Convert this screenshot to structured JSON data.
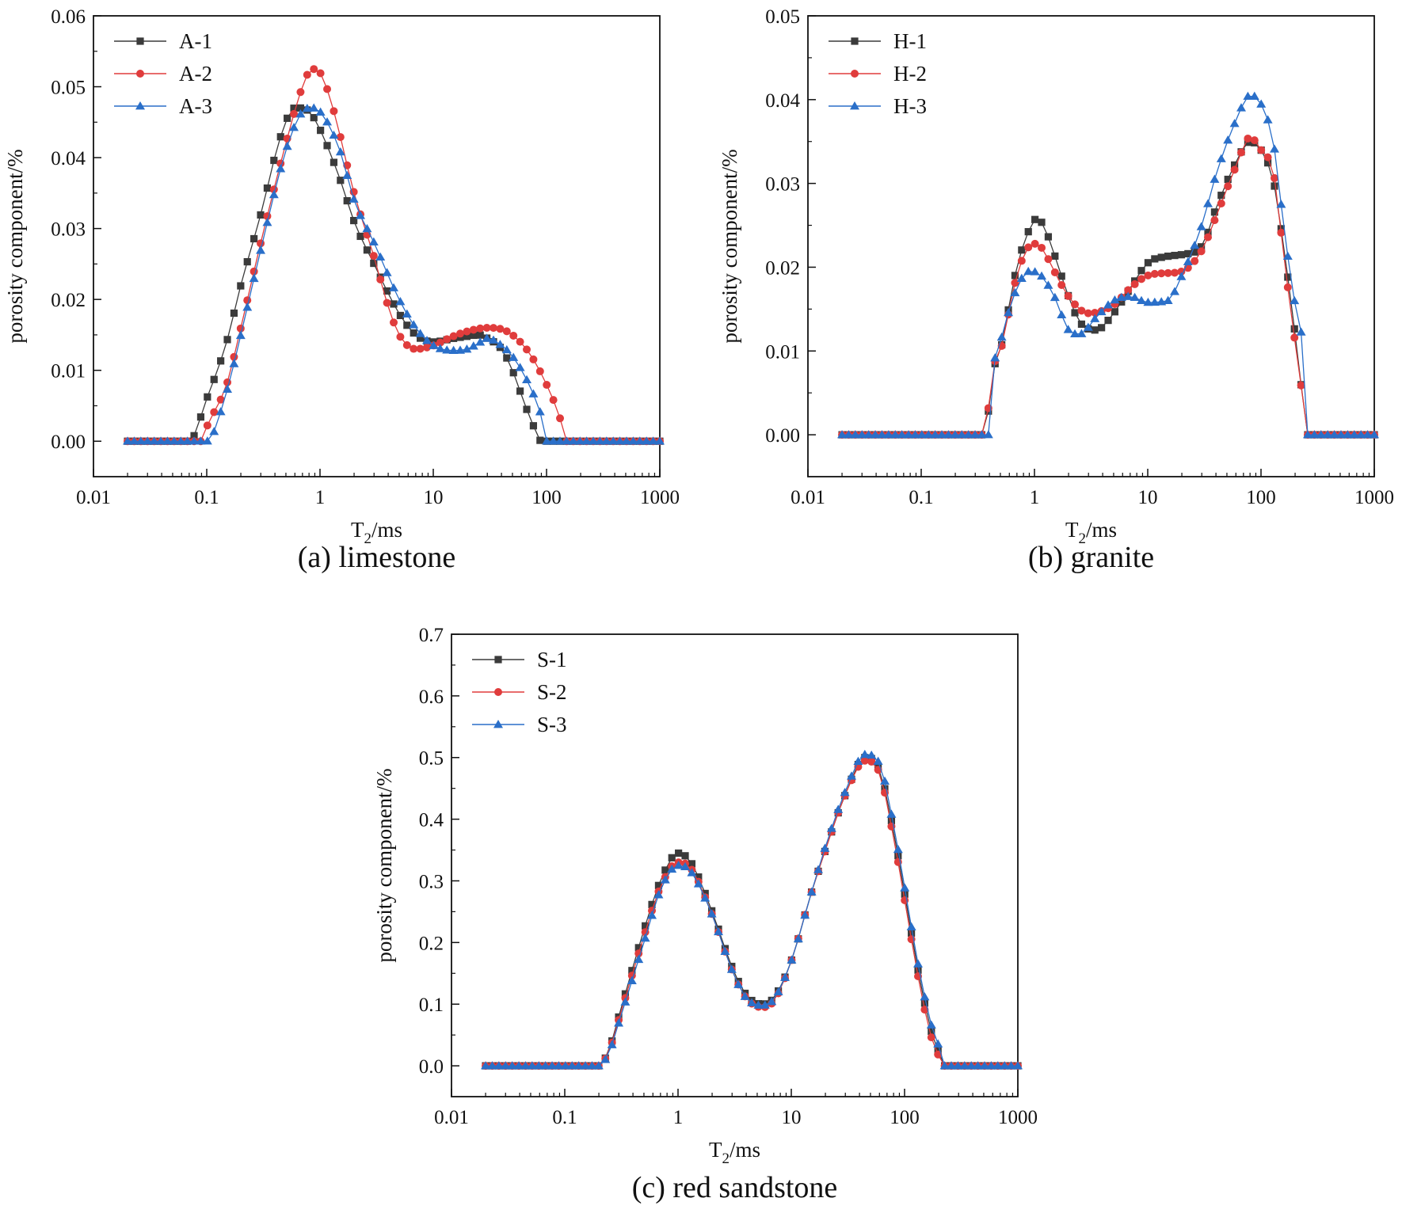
{
  "chart_data": [
    {
      "id": "a",
      "type": "line",
      "caption": "(a) limestone",
      "xlabel": "T",
      "xlabel_sub": "2",
      "xlabel_unit": "/ms",
      "ylabel": "porosity component/%",
      "xscale": "log",
      "xlim": [
        0.01,
        1000
      ],
      "ylim": [
        -0.005,
        0.06
      ],
      "xticks": [
        0.01,
        0.1,
        1,
        10,
        100,
        1000
      ],
      "xtick_labels": [
        "0.01",
        "0.1",
        "1",
        "10",
        "100",
        "1000"
      ],
      "yticks": [
        0,
        0.01,
        0.02,
        0.03,
        0.04,
        0.05,
        0.06
      ],
      "ytick_labels": [
        "0.00",
        "0.01",
        "0.02",
        "0.03",
        "0.04",
        "0.05",
        "0.06"
      ],
      "legend_position": "top-left",
      "series": [
        {
          "name": "A-1",
          "color": "#3b3b3b",
          "marker": "square",
          "anchors": [
            [
              0.02,
              0
            ],
            [
              0.07,
              0
            ],
            [
              0.1,
              0.006
            ],
            [
              0.15,
              0.014
            ],
            [
              0.2,
              0.022
            ],
            [
              0.3,
              0.032
            ],
            [
              0.45,
              0.043
            ],
            [
              0.6,
              0.047
            ],
            [
              0.7,
              0.047
            ],
            [
              0.85,
              0.046
            ],
            [
              1,
              0.044
            ],
            [
              1.5,
              0.037
            ],
            [
              2,
              0.031
            ],
            [
              3,
              0.025
            ],
            [
              5,
              0.018
            ],
            [
              7,
              0.015
            ],
            [
              10,
              0.014
            ],
            [
              15,
              0.0145
            ],
            [
              20,
              0.0148
            ],
            [
              25,
              0.015
            ],
            [
              30,
              0.0145
            ],
            [
              40,
              0.013
            ],
            [
              50,
              0.01
            ],
            [
              65,
              0.005
            ],
            [
              80,
              0.0015
            ],
            [
              90,
              0
            ],
            [
              1000,
              0
            ]
          ]
        },
        {
          "name": "A-2",
          "color": "#e03c3c",
          "marker": "circle",
          "anchors": [
            [
              0.02,
              0
            ],
            [
              0.09,
              0
            ],
            [
              0.1,
              0.002
            ],
            [
              0.15,
              0.008
            ],
            [
              0.2,
              0.016
            ],
            [
              0.3,
              0.028
            ],
            [
              0.5,
              0.042
            ],
            [
              0.7,
              0.05
            ],
            [
              0.85,
              0.0525
            ],
            [
              1,
              0.052
            ],
            [
              1.3,
              0.047
            ],
            [
              2,
              0.035
            ],
            [
              3,
              0.026
            ],
            [
              4,
              0.019
            ],
            [
              5,
              0.015
            ],
            [
              7,
              0.013
            ],
            [
              10,
              0.0135
            ],
            [
              15,
              0.0148
            ],
            [
              20,
              0.0155
            ],
            [
              30,
              0.016
            ],
            [
              40,
              0.0158
            ],
            [
              50,
              0.015
            ],
            [
              70,
              0.0125
            ],
            [
              100,
              0.008
            ],
            [
              130,
              0.0035
            ],
            [
              150,
              0
            ],
            [
              1000,
              0
            ]
          ]
        },
        {
          "name": "A-3",
          "color": "#2a6fc9",
          "marker": "triangle",
          "anchors": [
            [
              0.02,
              0
            ],
            [
              0.1,
              0
            ],
            [
              0.15,
              0.007
            ],
            [
              0.2,
              0.015
            ],
            [
              0.3,
              0.027
            ],
            [
              0.5,
              0.041
            ],
            [
              0.7,
              0.0465
            ],
            [
              0.85,
              0.047
            ],
            [
              1,
              0.0465
            ],
            [
              1.5,
              0.041
            ],
            [
              2,
              0.034
            ],
            [
              3,
              0.028
            ],
            [
              5,
              0.02
            ],
            [
              7,
              0.016
            ],
            [
              10,
              0.0135
            ],
            [
              15,
              0.0128
            ],
            [
              20,
              0.013
            ],
            [
              25,
              0.0138
            ],
            [
              30,
              0.0145
            ],
            [
              40,
              0.0135
            ],
            [
              50,
              0.012
            ],
            [
              70,
              0.008
            ],
            [
              90,
              0.0035
            ],
            [
              100,
              0
            ],
            [
              1000,
              0
            ]
          ]
        }
      ]
    },
    {
      "id": "b",
      "type": "line",
      "caption": "(b) granite",
      "xlabel": "T",
      "xlabel_sub": "2",
      "xlabel_unit": "/ms",
      "ylabel": "porosity component/%",
      "xscale": "log",
      "xlim": [
        0.01,
        1000
      ],
      "ylim": [
        -0.005,
        0.05
      ],
      "xticks": [
        0.01,
        0.1,
        1,
        10,
        100,
        1000
      ],
      "xtick_labels": [
        "0.01",
        "0.1",
        "1",
        "10",
        "100",
        "1000"
      ],
      "yticks": [
        0,
        0.01,
        0.02,
        0.03,
        0.04,
        0.05
      ],
      "ytick_labels": [
        "0.00",
        "0.01",
        "0.02",
        "0.03",
        "0.04",
        "0.05"
      ],
      "legend_position": "top-left",
      "series": [
        {
          "name": "H-1",
          "color": "#3b3b3b",
          "marker": "square",
          "anchors": [
            [
              0.02,
              0
            ],
            [
              0.38,
              0
            ],
            [
              0.4,
              0.005
            ],
            [
              0.5,
              0.01
            ],
            [
              0.7,
              0.02
            ],
            [
              0.9,
              0.0245
            ],
            [
              1.05,
              0.0258
            ],
            [
              1.2,
              0.025
            ],
            [
              1.5,
              0.0215
            ],
            [
              2,
              0.0165
            ],
            [
              2.5,
              0.0135
            ],
            [
              3.5,
              0.0125
            ],
            [
              5,
              0.0145
            ],
            [
              7,
              0.0175
            ],
            [
              10,
              0.0205
            ],
            [
              15,
              0.0213
            ],
            [
              20,
              0.0215
            ],
            [
              30,
              0.0225
            ],
            [
              40,
              0.027
            ],
            [
              60,
              0.0325
            ],
            [
              80,
              0.035
            ],
            [
              100,
              0.034
            ],
            [
              130,
              0.03
            ],
            [
              160,
              0.022
            ],
            [
              200,
              0.012
            ],
            [
              230,
              0.005
            ],
            [
              250,
              0
            ],
            [
              1000,
              0
            ]
          ]
        },
        {
          "name": "H-2",
          "color": "#e03c3c",
          "marker": "circle",
          "anchors": [
            [
              0.02,
              0
            ],
            [
              0.38,
              0
            ],
            [
              0.4,
              0.0055
            ],
            [
              0.5,
              0.01
            ],
            [
              0.7,
              0.019
            ],
            [
              0.9,
              0.0225
            ],
            [
              1.05,
              0.0228
            ],
            [
              1.2,
              0.022
            ],
            [
              1.5,
              0.0195
            ],
            [
              2,
              0.0165
            ],
            [
              3,
              0.0145
            ],
            [
              5,
              0.0155
            ],
            [
              7,
              0.0175
            ],
            [
              10,
              0.019
            ],
            [
              15,
              0.0193
            ],
            [
              20,
              0.0195
            ],
            [
              30,
              0.022
            ],
            [
              40,
              0.026
            ],
            [
              60,
              0.032
            ],
            [
              80,
              0.0355
            ],
            [
              100,
              0.034
            ],
            [
              130,
              0.031
            ],
            [
              160,
              0.021
            ],
            [
              200,
              0.011
            ],
            [
              230,
              0.005
            ],
            [
              250,
              0
            ],
            [
              1000,
              0
            ]
          ]
        },
        {
          "name": "H-3",
          "color": "#2a6fc9",
          "marker": "triangle",
          "anchors": [
            [
              0.02,
              0
            ],
            [
              0.4,
              0
            ],
            [
              0.42,
              0.006
            ],
            [
              0.5,
              0.011
            ],
            [
              0.7,
              0.0175
            ],
            [
              0.9,
              0.0195
            ],
            [
              1.1,
              0.0192
            ],
            [
              1.5,
              0.0165
            ],
            [
              2,
              0.0125
            ],
            [
              2.5,
              0.012
            ],
            [
              3.5,
              0.014
            ],
            [
              5,
              0.016
            ],
            [
              7,
              0.0165
            ],
            [
              10,
              0.0158
            ],
            [
              15,
              0.016
            ],
            [
              20,
              0.019
            ],
            [
              30,
              0.025
            ],
            [
              40,
              0.031
            ],
            [
              60,
              0.0375
            ],
            [
              80,
              0.0405
            ],
            [
              100,
              0.0395
            ],
            [
              130,
              0.0345
            ],
            [
              160,
              0.0245
            ],
            [
              200,
              0.0155
            ],
            [
              230,
              0.011
            ],
            [
              250,
              0
            ],
            [
              1000,
              0
            ]
          ]
        }
      ]
    },
    {
      "id": "c",
      "type": "line",
      "caption": "(c) red sandstone",
      "xlabel": "T",
      "xlabel_sub": "2",
      "xlabel_unit": "/ms",
      "ylabel": "porosity component/%",
      "xscale": "log",
      "xlim": [
        0.01,
        1000
      ],
      "ylim": [
        -0.05,
        0.7
      ],
      "xticks": [
        0.01,
        0.1,
        1,
        10,
        100,
        1000
      ],
      "xtick_labels": [
        "0.01",
        "0.1",
        "1",
        "10",
        "100",
        "1000"
      ],
      "yticks": [
        0,
        0.1,
        0.2,
        0.3,
        0.4,
        0.5,
        0.6,
        0.7
      ],
      "ytick_labels": [
        "0.0",
        "0.1",
        "0.2",
        "0.3",
        "0.4",
        "0.5",
        "0.6",
        "0.7"
      ],
      "legend_position": "top-left",
      "series": [
        {
          "name": "S-1",
          "color": "#3b3b3b",
          "marker": "square",
          "anchors": [
            [
              0.02,
              0
            ],
            [
              0.2,
              0
            ],
            [
              0.25,
              0.03
            ],
            [
              0.3,
              0.08
            ],
            [
              0.5,
              0.22
            ],
            [
              0.7,
              0.3
            ],
            [
              1,
              0.345
            ],
            [
              1.3,
              0.33
            ],
            [
              2,
              0.25
            ],
            [
              3,
              0.16
            ],
            [
              4,
              0.115
            ],
            [
              5.5,
              0.1
            ],
            [
              7,
              0.11
            ],
            [
              10,
              0.17
            ],
            [
              15,
              0.28
            ],
            [
              20,
              0.35
            ],
            [
              30,
              0.44
            ],
            [
              45,
              0.5
            ],
            [
              60,
              0.48
            ],
            [
              80,
              0.38
            ],
            [
              100,
              0.28
            ],
            [
              130,
              0.16
            ],
            [
              170,
              0.06
            ],
            [
              200,
              0.02
            ],
            [
              210,
              0
            ],
            [
              1000,
              0
            ]
          ]
        },
        {
          "name": "S-2",
          "color": "#e03c3c",
          "marker": "circle",
          "anchors": [
            [
              0.02,
              0
            ],
            [
              0.2,
              0
            ],
            [
              0.25,
              0.028
            ],
            [
              0.3,
              0.075
            ],
            [
              0.5,
              0.21
            ],
            [
              0.7,
              0.29
            ],
            [
              1,
              0.33
            ],
            [
              1.3,
              0.32
            ],
            [
              2,
              0.245
            ],
            [
              3,
              0.155
            ],
            [
              4,
              0.11
            ],
            [
              5.5,
              0.095
            ],
            [
              7,
              0.105
            ],
            [
              10,
              0.17
            ],
            [
              15,
              0.28
            ],
            [
              20,
              0.35
            ],
            [
              30,
              0.44
            ],
            [
              45,
              0.495
            ],
            [
              60,
              0.475
            ],
            [
              80,
              0.37
            ],
            [
              100,
              0.27
            ],
            [
              130,
              0.15
            ],
            [
              170,
              0.05
            ],
            [
              200,
              0.015
            ],
            [
              210,
              0
            ],
            [
              1000,
              0
            ]
          ]
        },
        {
          "name": "S-3",
          "color": "#2a6fc9",
          "marker": "triangle",
          "anchors": [
            [
              0.02,
              0
            ],
            [
              0.2,
              0
            ],
            [
              0.25,
              0.025
            ],
            [
              0.3,
              0.07
            ],
            [
              0.5,
              0.2
            ],
            [
              0.7,
              0.285
            ],
            [
              1,
              0.325
            ],
            [
              1.3,
              0.315
            ],
            [
              2,
              0.245
            ],
            [
              3,
              0.155
            ],
            [
              4,
              0.11
            ],
            [
              5.5,
              0.098
            ],
            [
              7,
              0.108
            ],
            [
              10,
              0.17
            ],
            [
              15,
              0.28
            ],
            [
              20,
              0.355
            ],
            [
              30,
              0.445
            ],
            [
              45,
              0.505
            ],
            [
              60,
              0.49
            ],
            [
              80,
              0.39
            ],
            [
              100,
              0.29
            ],
            [
              130,
              0.17
            ],
            [
              170,
              0.07
            ],
            [
              200,
              0.03
            ],
            [
              210,
              0
            ],
            [
              1000,
              0
            ]
          ]
        }
      ]
    }
  ]
}
